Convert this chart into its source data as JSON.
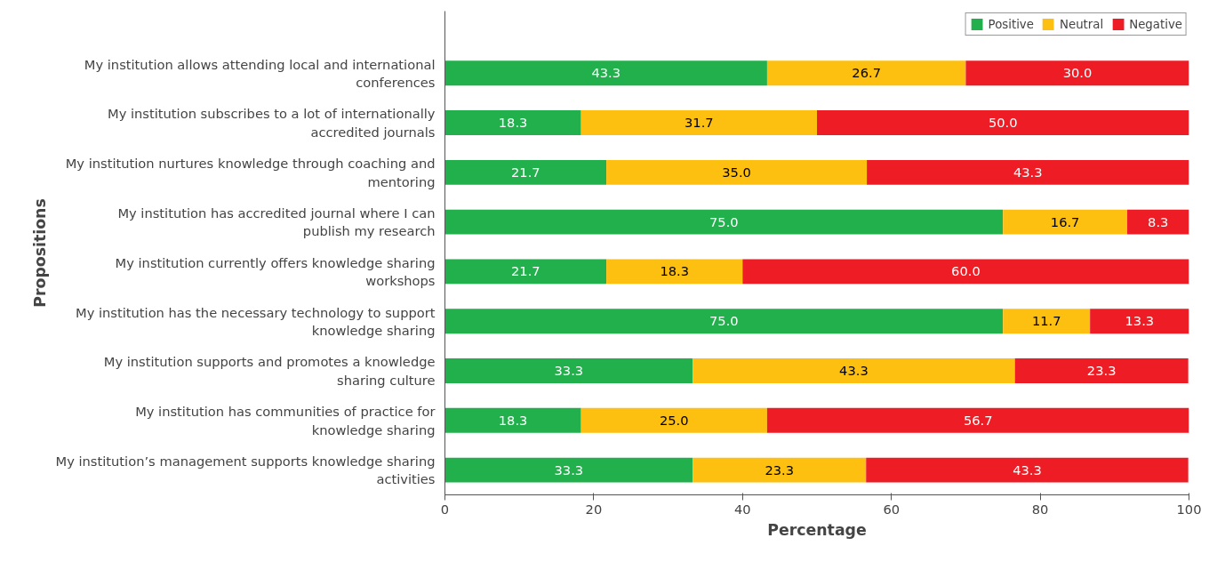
{
  "chart_data": {
    "type": "bar",
    "orientation": "horizontal",
    "stacked": true,
    "xlabel": "Percentage",
    "ylabel": "Propositions",
    "categories": [
      "My institution allows attending local and international conferences",
      "My institution subscribes to a lot of internationally accredited journals",
      "My institution nurtures knowledge through coaching and mentoring",
      "My institution has accredited journal where I can publish my research",
      "My institution currently offers knowledge sharing workshops",
      "My institution has the necessary technology to support knowledge sharing",
      "My institution supports and promotes a knowledge sharing culture",
      "My institution has communities of practice for knowledge sharing",
      "My institution’s management supports knowledge sharing activities"
    ],
    "series": [
      {
        "name": "Positive",
        "color": "#21b04b",
        "values": [
          43.3,
          18.3,
          21.7,
          75.0,
          21.7,
          75.0,
          33.3,
          18.3,
          33.3
        ],
        "value_labels": [
          "43.3",
          "18.3",
          "21.7",
          "75.0",
          "21.7",
          "75.0",
          "33.3",
          "18.3",
          "33.3"
        ]
      },
      {
        "name": "Neutral",
        "color": "#fdc010",
        "values": [
          26.7,
          31.7,
          35.0,
          16.7,
          18.3,
          11.7,
          43.3,
          25.0,
          23.3
        ],
        "value_labels": [
          "26.7",
          "31.7",
          "35.0",
          "16.7",
          "18.3",
          "11.7",
          "43.3",
          "25.0",
          "23.3"
        ]
      },
      {
        "name": "Negative",
        "color": "#ee1c24",
        "values": [
          30.0,
          50.0,
          43.3,
          8.3,
          60.0,
          13.3,
          23.3,
          56.7,
          43.3
        ],
        "value_labels": [
          "30.0",
          "50.0",
          "43.3",
          "8.3",
          "60.0",
          "13.3",
          "23.3",
          "56.7",
          "43.3"
        ]
      }
    ],
    "xlim": [
      0,
      100
    ],
    "xticks": [
      0,
      20,
      40,
      60,
      80,
      100
    ],
    "grid": false,
    "legend": "top right"
  }
}
